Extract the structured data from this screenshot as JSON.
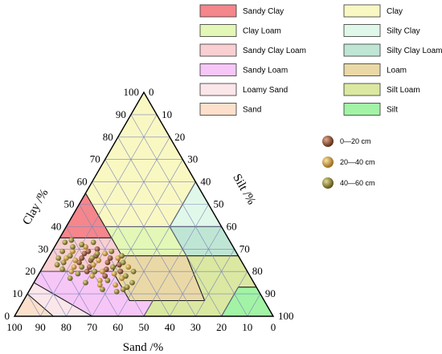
{
  "chart_data": {
    "type": "scatter",
    "subtype": "ternary-soil-texture",
    "axes": {
      "clay": {
        "label": "Clay /%",
        "ticks": [
          "0",
          "10",
          "20",
          "30",
          "40",
          "50",
          "60",
          "70",
          "80",
          "90",
          "100"
        ]
      },
      "silt": {
        "label": "Silt /%",
        "ticks": [
          "0",
          "10",
          "20",
          "30",
          "40",
          "50",
          "60",
          "70",
          "80",
          "90",
          "100"
        ]
      },
      "sand": {
        "label": "Sand /%",
        "ticks": [
          "100",
          "90",
          "80",
          "70",
          "60",
          "50",
          "40",
          "30",
          "20",
          "10",
          "0"
        ]
      }
    },
    "grid": true,
    "texture_classes": [
      {
        "name": "Sandy Clay",
        "color": "#f4868c",
        "vertices": [
          [
            45,
            35,
            20
          ],
          [
            65,
            35,
            0
          ],
          [
            45,
            55,
            0
          ]
        ]
      },
      {
        "name": "Clay Loam",
        "color": "#e3f7b6",
        "vertices": [
          [
            20,
            40,
            40
          ],
          [
            20,
            27,
            53
          ],
          [
            45,
            27,
            28
          ],
          [
            45,
            40,
            15
          ]
        ]
      },
      {
        "name": "Sandy Clay Loam",
        "color": "#f9cfd2",
        "vertices": [
          [
            45,
            35,
            20
          ],
          [
            45,
            27,
            28
          ],
          [
            52,
            20,
            28
          ],
          [
            80,
            20,
            0
          ],
          [
            65,
            35,
            0
          ]
        ]
      },
      {
        "name": "Sandy Loam",
        "color": "#f6c6f7",
        "vertices": [
          [
            52,
            20,
            28
          ],
          [
            52,
            7,
            41
          ],
          [
            43,
            7,
            50
          ],
          [
            50,
            0,
            50
          ],
          [
            70,
            0,
            30
          ],
          [
            85,
            15,
            0
          ],
          [
            80,
            20,
            0
          ]
        ]
      },
      {
        "name": "Loamy Sand",
        "color": "#fbe6ea",
        "vertices": [
          [
            70,
            0,
            30
          ],
          [
            85,
            15,
            0
          ],
          [
            90,
            10,
            0
          ],
          [
            85,
            0,
            15
          ]
        ]
      },
      {
        "name": "Sand",
        "color": "#fde0cb",
        "vertices": [
          [
            85,
            0,
            15
          ],
          [
            90,
            10,
            0
          ],
          [
            100,
            0,
            0
          ]
        ]
      },
      {
        "name": "Clay",
        "color": "#f9f8c3",
        "vertices": [
          [
            45,
            55,
            0
          ],
          [
            45,
            40,
            15
          ],
          [
            20,
            40,
            40
          ],
          [
            0,
            60,
            40
          ],
          [
            0,
            100,
            0
          ]
        ]
      },
      {
        "name": "Silty Clay",
        "color": "#e0f8ea",
        "vertices": [
          [
            0,
            60,
            40
          ],
          [
            20,
            40,
            40
          ],
          [
            0,
            40,
            60
          ]
        ]
      },
      {
        "name": "Silty Clay Loam",
        "color": "#bfe6d4",
        "vertices": [
          [
            0,
            40,
            60
          ],
          [
            20,
            40,
            40
          ],
          [
            20,
            27,
            53
          ],
          [
            0,
            27,
            73
          ]
        ]
      },
      {
        "name": "Loam",
        "color": "#ead9a6",
        "vertices": [
          [
            45,
            27,
            28
          ],
          [
            20,
            27,
            53
          ],
          [
            23,
            7,
            70
          ],
          [
            43,
            7,
            50
          ],
          [
            52,
            7,
            41
          ],
          [
            52,
            20,
            28
          ]
        ]
      },
      {
        "name": "Silt Loam",
        "color": "#dbe8a1",
        "vertices": [
          [
            50,
            0,
            50
          ],
          [
            20,
            0,
            80
          ],
          [
            7,
            13,
            80
          ],
          [
            0,
            13,
            87
          ],
          [
            0,
            27,
            73
          ],
          [
            20,
            27,
            53
          ],
          [
            23,
            7,
            70
          ],
          [
            43,
            7,
            50
          ]
        ]
      },
      {
        "name": "Silt",
        "color": "#a2f3a5",
        "vertices": [
          [
            20,
            0,
            80
          ],
          [
            7,
            13,
            80
          ],
          [
            0,
            13,
            87
          ],
          [
            0,
            0,
            100
          ]
        ]
      }
    ],
    "legend": {
      "position": "top-right",
      "classes": [
        {
          "name": "Sandy Clay",
          "color": "#f4868c"
        },
        {
          "name": "Clay Loam",
          "color": "#e3f7b6"
        },
        {
          "name": "Sandy Clay Loam",
          "color": "#f9cfd2"
        },
        {
          "name": "Sandy Loam",
          "color": "#f6c6f7"
        },
        {
          "name": "Loamy Sand",
          "color": "#fbe6ea"
        },
        {
          "name": "Sand",
          "color": "#fde0cb"
        },
        {
          "name": "Clay",
          "color": "#f9f8c3"
        },
        {
          "name": "Silty Clay",
          "color": "#e0f8ea"
        },
        {
          "name": "Silty Clay Loam",
          "color": "#bfe6d4"
        },
        {
          "name": "Loam",
          "color": "#ead9a6"
        },
        {
          "name": "Silt Loam",
          "color": "#dbe8a1"
        },
        {
          "name": "Silt",
          "color": "#a2f3a5"
        }
      ],
      "depths": [
        {
          "name": "0—20 cm",
          "color": "#8a4a2e"
        },
        {
          "name": "20—40 cm",
          "color": "#c9963a"
        },
        {
          "name": "40—60 cm",
          "color": "#8a8030"
        }
      ]
    },
    "series": [
      {
        "name": "0—20 cm",
        "color": "#8a4a2e",
        "points": [
          [
            60,
            22
          ],
          [
            58,
            25
          ],
          [
            55,
            27
          ],
          [
            52,
            24
          ],
          [
            62,
            20
          ],
          [
            57,
            29
          ],
          [
            54,
            21
          ],
          [
            50,
            26
          ],
          [
            48,
            23
          ],
          [
            59,
            28
          ],
          [
            63,
            24
          ],
          [
            56,
            18
          ],
          [
            53,
            30
          ],
          [
            61,
            26
          ],
          [
            49,
            20
          ]
        ]
      },
      {
        "name": "20—40 cm",
        "color": "#c9963a",
        "points": [
          [
            66,
            22
          ],
          [
            64,
            25
          ],
          [
            57,
            31
          ],
          [
            51,
            28
          ],
          [
            47,
            26
          ],
          [
            59,
            16
          ],
          [
            54,
            14
          ],
          [
            61,
            18
          ],
          [
            68,
            20
          ],
          [
            45,
            22
          ],
          [
            52,
            19
          ],
          [
            58,
            23
          ],
          [
            55,
            25
          ],
          [
            63,
            29
          ],
          [
            50,
            17
          ],
          [
            60,
            14
          ],
          [
            56,
            20
          ],
          [
            67,
            26
          ]
        ]
      },
      {
        "name": "40—60 cm",
        "color": "#8a8030",
        "points": [
          [
            69,
            24
          ],
          [
            71,
            21
          ],
          [
            65,
            27
          ],
          [
            62,
            31
          ],
          [
            58,
            32
          ],
          [
            53,
            33
          ],
          [
            48,
            29
          ],
          [
            46,
            24
          ],
          [
            44,
            20
          ],
          [
            50,
            13
          ],
          [
            55,
            11
          ],
          [
            60,
            12
          ],
          [
            65,
            15
          ],
          [
            70,
            17
          ],
          [
            72,
            23
          ],
          [
            67,
            29
          ],
          [
            57,
            26
          ],
          [
            51,
            22
          ],
          [
            54,
            28
          ],
          [
            63,
            22
          ],
          [
            59,
            20
          ],
          [
            48,
            18
          ],
          [
            45,
            27
          ],
          [
            61,
            34
          ],
          [
            66,
            19
          ],
          [
            56,
            16
          ],
          [
            52,
            12
          ],
          [
            70,
            26
          ],
          [
            47,
            15
          ],
          [
            64,
            33
          ]
        ]
      }
    ]
  }
}
